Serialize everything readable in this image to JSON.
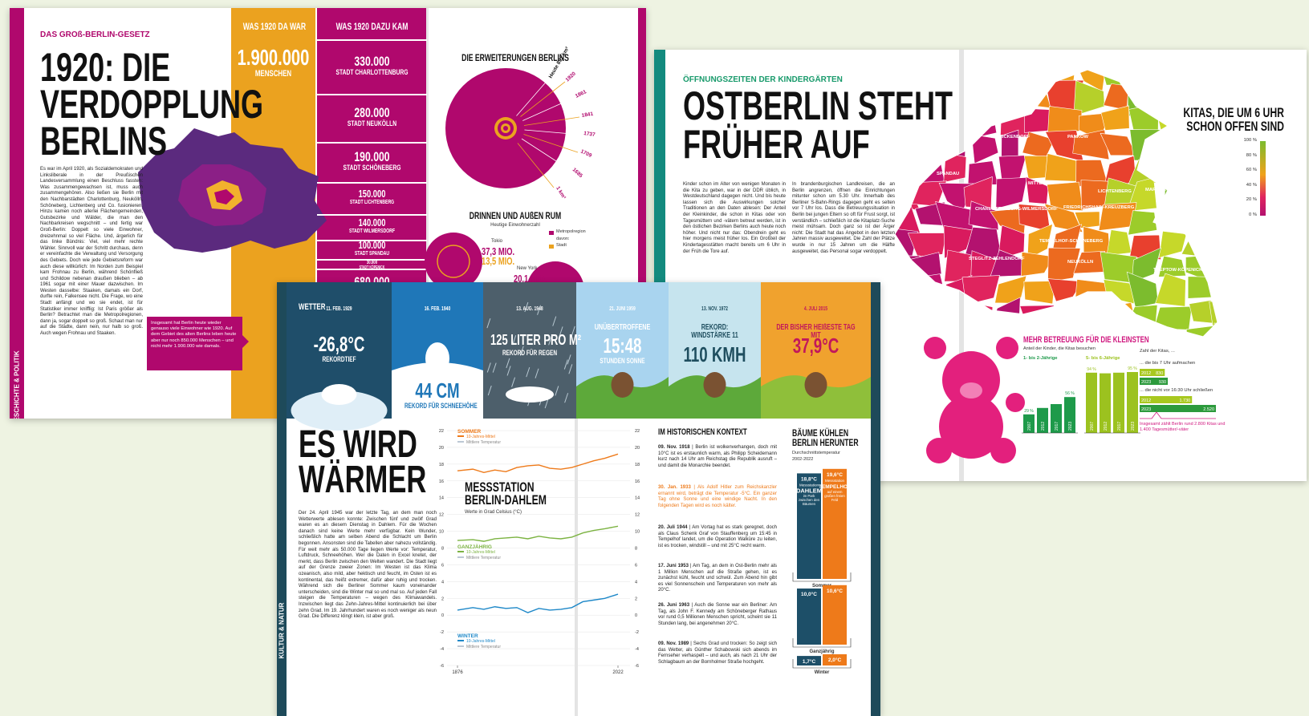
{
  "spread1": {
    "kicker": "DAS GROß-BERLIN-GESETZ",
    "title": [
      "1920: DIE",
      "VERDOPPLUNG",
      "BERLINS"
    ],
    "body": "Es war im April 1920, als Sozialdemokraten und Linksliberale in der Preußischen Landesversammlung einen Beschluss fassten: Was zusammengewachsen ist, muss auch zusammengehören. Also ließen sie Berlin mit den Nachbarstädten Charlottenburg, Neukölln, Schöneberg, Lichtenberg und Co. fusionieren. Hinzu kamen noch allerlei Flächengemeinden, Gutsbezirke und Wälder, die man den Nachbarkreisen wegschnitt – und fertig war Groß-Berlin: Doppelt so viele Einwohner, dreizehnmal so viel Fläche. Und, ärgerlich für das linke Bündnis: Viel, viel mehr rechte Wähler. Sinnvoll war der Schritt durchaus, denn er vereinfachte die Verwaltung und Versorgung des Gebiets. Doch wie jede Gebietsreform war auch diese willkürlich: Im Norden zum Beispiel kam Frohnau zu Berlin, während Schönfließ und Schildow nebenan draußen blieben – ab 1961 sogar mit einer Mauer dazwischen. Im Westen dasselbe: Staaken, damals ein Dorf, durfte rein, Falkensee nicht. Die Frage, wo eine Stadt anfängt und wo sie endet, ist für Statistiker immer knifflig: Ist Paris größer als Berlin? Betrachtet man die Metropolregionen, dann ja, sogar doppelt so groß. Schaut man nur auf die Städte, dann nein, nur halb so groß. Auch wegen Frohnau und Staaken.",
    "section": "GESCHICHTE & POLITIK",
    "callout": "Insgesamt hat Berlin heute wieder genauso viele Einwohner wie 1920. Auf dem Gebiet des alten Berlins leben heute aber nur noch 850.000 Menschen – und nicht mehr 1.900.000 wie damals.",
    "before": {
      "heading": "WAS 1920 DA WAR",
      "value": "1.900.000",
      "label": "MENSCHEN"
    },
    "added": {
      "heading": "WAS 1920 DAZU KAM",
      "items": [
        {
          "value": "330.000",
          "label": "STADT CHARLOTTENBURG"
        },
        {
          "value": "280.000",
          "label": "STADT NEUKÖLLN"
        },
        {
          "value": "190.000",
          "label": "STADT SCHÖNEBERG"
        },
        {
          "value": "150.000",
          "label": "STADT LICHTENBERG"
        },
        {
          "value": "140.000",
          "label": "STADT WILMERSDORF"
        },
        {
          "value": "100.000",
          "label": "STADT SPANDAU"
        },
        {
          "value": "30.000",
          "label": "STADT KÖPENICK"
        }
      ],
      "more": "680.000"
    },
    "expansions": {
      "title": "DIE ERWEITERUNGEN BERLINS",
      "labels": [
        "Heute 891 km²",
        "1920",
        "1861",
        "1841",
        "1737",
        "1709",
        "1685",
        "1 km²"
      ]
    },
    "metro": {
      "title": "DRINNEN UND AUßEN RUM",
      "subtitle": "Heutige Einwohnerzahl",
      "legend": [
        "Metropolregion",
        "davon:",
        "Stadt"
      ],
      "cities": [
        {
          "name": "Tokio",
          "metro": "37,3 MIO.",
          "city": "13,5 MIO."
        },
        {
          "name": "New York",
          "metro": "20,1 MIO."
        }
      ]
    }
  },
  "spread2": {
    "kicker": "ÖFFNUNGSZEITEN DER KINDERGÄRTEN",
    "title": [
      "OSTBERLIN STEHT",
      "FRÜHER AUF"
    ],
    "body": [
      "Kinder schon im Alter von wenigen Monaten in die Kita zu geben, war in der DDR üblich, in Westdeutschland dagegen nicht. Und bis heute lassen sich die Auswirkungen solcher Traditionen an den Daten ablesen: Der Anteil der Kleinkinder, die schon in Kitas oder von Tagesmüttern und -vätern betreut werden, ist in den östlichen Bezirken Berlins auch heute noch höher. Und nicht nur das: Obendrein geht es hier morgens meist früher los. Ein Großteil der Kindertagesstätten macht bereits um 6 Uhr in der Früh die Tore auf.",
      "In brandenburgischen Landkreisen, die an Berlin angrenzen, öffnen die Einrichtungen mitunter schon um 5.30 Uhr. Innerhalb des Berliner S-Bahn-Rings dagegen geht es selten vor 7 Uhr los. Dass die Betreuungssituation in Berlin bei jungen Eltern so oft für Frust sorgt, ist verständlich – schließlich ist die Kitaplatz-Suche meist mühsam. Doch ganz so ist der Ärger nicht: Die Stadt hat das Angebot in den letzten Jahren massiv ausgeweitet. Die Zahl der Plätze wurde in nur 15 Jahren um die Hälfte ausgeweitet, das Personal sogar verdoppelt."
    ],
    "map_title": "KITAS, DIE UM 6 UHR SCHON OFFEN SIND",
    "legend": [
      "100 %",
      "80 %",
      "60 %",
      "40 %",
      "20 %",
      "0 %"
    ],
    "districts": [
      "REINICKENDORF",
      "PANKOW",
      "SPANDAU",
      "MITTE",
      "CHARLOTTENBURG-WILMERSDORF",
      "FRIEDRICHSHAIN-KREUZBERG",
      "LICHTENBERG",
      "MARZAHN-HELLERSDORF",
      "TEMPELHOF-SCHÖNEBERG",
      "STEGLITZ-ZEHLENDORF",
      "NEUKÖLLN",
      "TREPTOW-KÖPENICK"
    ],
    "care": {
      "title": "MEHR BETREUUNG FÜR DIE KLEINSTEN",
      "subtitle": "Anteil der Kinder, die Kitas besuchen",
      "years": [
        "2007",
        "2012",
        "2017",
        "2023"
      ],
      "groups": [
        {
          "name": "1- bis 2-Jährige",
          "values": [
            29,
            39,
            45,
            56
          ],
          "value_labels": [
            "29 %",
            null,
            null,
            "56 %"
          ]
        },
        {
          "name": "5- bis 6-Jährige",
          "values": [
            94,
            93,
            94,
            95
          ],
          "value_labels": [
            "94 %",
            null,
            null,
            "95 %"
          ]
        }
      ]
    },
    "kitas": {
      "title": "Zahl der Kitas, ...",
      "groups": [
        {
          "label": "... die bis 7 Uhr aufmachen",
          "years": [
            "2012",
            "2023"
          ],
          "values": [
            830,
            930
          ]
        },
        {
          "label": "... die nicht vor 16:30 Uhr schließen",
          "years": [
            "2012",
            "2023"
          ],
          "values": [
            1730,
            2520
          ],
          "value_labels": [
            "1.730",
            "2.520"
          ]
        }
      ],
      "footnote": "Insgesamt zählt Berlin rund 2.800 Kitas und 1.400 Tagesmütter/-väter"
    }
  },
  "spread3": {
    "section": "KULTUR & NATUR",
    "panels": [
      {
        "heading": "WETTER",
        "date": "11. FEB. 1929",
        "value": "-26,8°C",
        "label": "REKORDTIEF"
      },
      {
        "date": "16. FEB. 1940",
        "value": "44 CM",
        "label": "REKORD FÜR SCHNEEHÖHE"
      },
      {
        "date": "13. AUG. 1948",
        "value": "125 LITER PRO M²",
        "label": "REKORD FÜR REGEN"
      },
      {
        "date": "21. JUNI 1959",
        "kicker": "UNÜBERTROFFENE",
        "value": "15:48",
        "label": "STUNDEN SONNE"
      },
      {
        "date": "13. NOV. 1972",
        "kicker": "REKORD: WINDSTÄRKE 11",
        "value": "110 KMH"
      },
      {
        "date": "4. JULI 2015",
        "kicker": "DER BISHER HEIßESTE TAG MIT",
        "value": "37,9°C"
      }
    ],
    "title": [
      "ES WIRD",
      "WÄRMER"
    ],
    "body": "Der 24. April 1945 war der letzte Tag, an dem man noch Wetterwerte ablesen konnte: Zwischen fünf und zwölf Grad waren es an diesem Dienstag in Dahlem. Für die Wochen danach sind keine Werte mehr verfügbar. Kein Wunder, schließlich hatte am selben Abend die Schlacht um Berlin begonnen. Ansonsten sind die Tabellen aber nahezu vollständig. Für weit mehr als 50.000 Tage liegen Werte vor: Temperatur, Luftdruck, Schneehöhen. Wer die Daten in Excel knetet, der merkt, dass Berlin zwischen den Welten wandert. Die Stadt liegt auf der Grenze zweier Zonen: Im Westen ist das Klima ozeanisch, also mild, aber hektisch und feucht, im Osten ist es kontinental, das heißt extremer, dafür aber ruhig und trocken. Während sich die Berliner Sommer kaum voneinander unterscheiden, sind die Winter mal so und mal so. Auf jeden Fall steigen die Temperaturen – wegen des Klimawandels. Inzwischen liegt das Zehn-Jahres-Mittel kontinuierlich bei über zehn Grad. Im 19. Jahrhundert waren es noch weniger als neun Grad. Die Differenz klingt klein, ist aber groß.",
    "chart": {
      "type": "line",
      "title": "MESSSTATION BERLIN-DAHLEM",
      "subtitle": "Werte in Grad Celsius (°C)",
      "x": [
        1876,
        1890,
        1900,
        1910,
        1920,
        1930,
        1940,
        1950,
        1960,
        1970,
        1980,
        1990,
        2000,
        2010,
        2022
      ],
      "xlim": [
        1876,
        2022
      ],
      "xticks": [
        1876,
        2022
      ],
      "ylim": [
        -6,
        22
      ],
      "yticks": [
        22,
        20,
        18,
        16,
        14,
        12,
        10,
        8,
        6,
        4,
        2,
        0,
        -2,
        -4,
        -6
      ],
      "series": [
        {
          "name": "SOMMER",
          "color": "#ee7a1a",
          "legend": [
            "10-Jahres-Mittel",
            "Mittlere Temperatur"
          ],
          "values": [
            17.2,
            17.4,
            17.0,
            17.3,
            17.1,
            17.6,
            17.8,
            17.9,
            17.5,
            17.4,
            17.6,
            18.0,
            18.4,
            18.7,
            19.2
          ]
        },
        {
          "name": "GANZJÄHRIG",
          "color": "#7cb342",
          "legend": [
            "10-Jahres-Mittel",
            "Mittlere Temperatur"
          ],
          "values": [
            8.9,
            9.0,
            8.8,
            9.1,
            9.2,
            9.3,
            9.1,
            9.4,
            9.2,
            9.1,
            9.3,
            9.8,
            10.1,
            10.3,
            10.6
          ]
        },
        {
          "name": "WINTER",
          "color": "#1e88c8",
          "legend": [
            "10-Jahres-Mittel",
            "Mittlere Temperatur"
          ],
          "values": [
            0.6,
            0.9,
            0.7,
            1.0,
            0.8,
            0.9,
            0.3,
            0.8,
            0.6,
            0.7,
            0.9,
            1.6,
            1.8,
            2.0,
            2.5
          ]
        }
      ]
    },
    "context": {
      "title": "IM HISTORISCHEN KONTEXT",
      "entries": [
        {
          "date": "09. Nov. 1918",
          "text": "Berlin ist wolkenverhangen, doch mit 10°C ist es erstaunlich warm, als Philipp Scheidemann kurz nach 14 Uhr am Reichstag die Republik ausruft – und damit die Monarchie beendet."
        },
        {
          "date": "30. Jan. 1933",
          "text": "Als Adolf Hitler zum Reichskanzler ernannt wird, beträgt die Temperatur -5°C. Ein ganzer Tag ohne Sonne und eine windige Nacht. In den folgenden Tagen wird es noch kälter."
        },
        {
          "date": "20. Juli 1944",
          "text": "Am Vortag hat es stark geregnet, doch als Claus Schenk Graf von Stauffenberg um 15:45 in Tempelhof landet, um die Operation Walküre zu leiten, ist es trocken, windstill – und mit 25°C recht warm."
        },
        {
          "date": "17. Juni 1953",
          "text": "Am Tag, an dem in Ost-Berlin mehr als 1 Million Menschen auf die Straße gehen, ist es zunächst kühl, feucht und schwül. Zum Abend hin gibt es viel Sonnenschein und Temperaturen von mehr als 20°C."
        },
        {
          "date": "26. Juni 1963",
          "text": "Auch die Sonne war ein Berliner: Am Tag, als John F. Kennedy am Schöneberger Rathaus vor rund 0,5 Millionen Menschen spricht, scheint sie 11 Stunden lang, bei angenehmen 20°C."
        },
        {
          "date": "09. Nov. 1989",
          "text": "Sechs Grad und trocken: So zeigt sich das Wetter, als Günther Schabowski sich abends im Fernseher verhaspelt – und auch, als nach 21 Uhr der Schlagbaum an der Bornholmer Straße hochgeht."
        }
      ]
    },
    "trees": {
      "title": [
        "BÄUME KÜHLEN",
        "BERLIN HERUNTER"
      ],
      "subtitle": [
        "Durchschnittstemperatur",
        "2002-2022"
      ],
      "stations": [
        {
          "kicker": "Messstation",
          "name": "DAHLEM",
          "desc": "im Park zwischen den Bäumen",
          "color": "#1d4f68"
        },
        {
          "kicker": "Messstation",
          "name": "TEMPELHOF",
          "desc": "auf einem großen freien Feld",
          "color": "#ee7a1a"
        }
      ],
      "groups": [
        {
          "name": "Sommer",
          "values": [
            18.8,
            19.6
          ],
          "value_labels": [
            "18,8°C",
            "19,6°C"
          ]
        },
        {
          "name": "Ganzjährig",
          "values": [
            10.0,
            10.6
          ],
          "value_labels": [
            "10,0°C",
            "10,6°C"
          ]
        },
        {
          "name": "Winter",
          "values": [
            1.7,
            2.0
          ],
          "value_labels": [
            "1,7°C",
            "2,0°C"
          ]
        }
      ]
    }
  }
}
